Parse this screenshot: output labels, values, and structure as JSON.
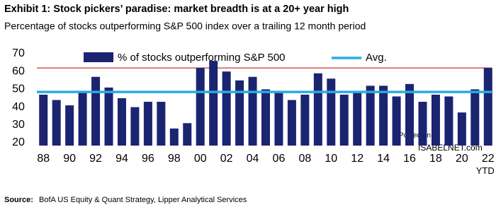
{
  "chart_data": {
    "type": "bar",
    "title": "Exhibit 1: Stock pickers’ paradise: market breadth is at a 20+ year high",
    "subtitle": "Percentage of stocks outperforming S&P 500 index over a trailing 12 month period",
    "categories": [
      "88",
      null,
      "90",
      null,
      "92",
      null,
      "94",
      null,
      "96",
      null,
      "98",
      null,
      "00",
      null,
      "02",
      null,
      "04",
      null,
      "06",
      null,
      "08",
      null,
      "10",
      null,
      "12",
      null,
      "14",
      null,
      "16",
      null,
      "18",
      null,
      "20",
      null,
      "22 YTD"
    ],
    "series": [
      {
        "name": "% of stocks outperforming S&P 500",
        "color": "#1b2470",
        "values": [
          47,
          44,
          41,
          48,
          57,
          51,
          45,
          40,
          43,
          43,
          28,
          31,
          62,
          66,
          60,
          55,
          57,
          50,
          49,
          44,
          47,
          59,
          56,
          47,
          48,
          52,
          52,
          46,
          53,
          43,
          47,
          46,
          37,
          50,
          62
        ]
      }
    ],
    "average": {
      "name": "Avg.",
      "color": "#29abe2",
      "value": 48.5
    },
    "reference_line": {
      "color": "#c00000",
      "value": 62
    },
    "ylim": [
      20,
      70
    ],
    "yticks": [
      20,
      30,
      40,
      50,
      60,
      70
    ],
    "watermark": [
      "Posted on",
      "ISABELNET.com"
    ],
    "source_label": "Source:",
    "source": "BofA US Equity & Quant Strategy, Lipper Analytical Services"
  }
}
